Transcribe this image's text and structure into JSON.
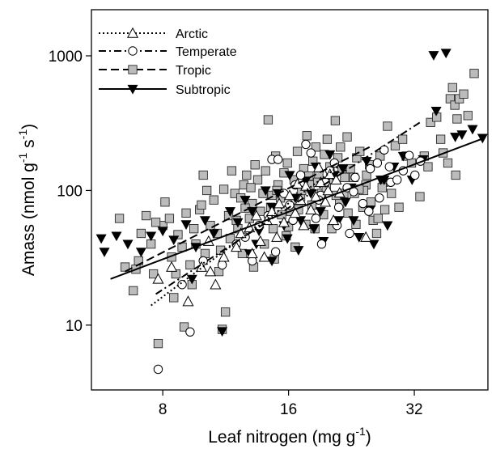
{
  "chart_data": {
    "type": "scatter",
    "x_scale": "log",
    "y_scale": "log",
    "xlim": [
      5.4,
      48
    ],
    "ylim": [
      3.3,
      2200
    ],
    "x_ticks": [
      8,
      16,
      32
    ],
    "x_tick_labels": [
      "8",
      "16",
      "32"
    ],
    "y_ticks": [
      10,
      100,
      1000
    ],
    "y_tick_labels": [
      "10",
      "100",
      "1000"
    ],
    "xlabel": "Leaf nitrogen (mg g",
    "xlabel_sup": "-1",
    "xlabel_close": ")",
    "ylabel_parts": [
      {
        "text": "Amass (nmol g",
        "sup": false
      },
      {
        "text": "-1",
        "sup": true
      },
      {
        "text": " s",
        "sup": false
      },
      {
        "text": "-1",
        "sup": true
      },
      {
        "text": ")",
        "sup": false
      }
    ],
    "grid": false,
    "legend_position": "top-left",
    "series": [
      {
        "name": "Arctic",
        "marker": "triangle-open",
        "line": "dotted",
        "fit": [
          [
            7.5,
            14
          ],
          [
            21,
            150
          ]
        ],
        "points": [
          [
            7.8,
            22
          ],
          [
            8.4,
            27
          ],
          [
            9.2,
            15
          ],
          [
            9.9,
            27
          ],
          [
            10.4,
            25
          ],
          [
            10.7,
            20
          ],
          [
            10.3,
            42
          ],
          [
            11.2,
            32
          ],
          [
            12.3,
            48
          ],
          [
            12.9,
            53
          ],
          [
            13.1,
            34
          ],
          [
            13.7,
            42
          ],
          [
            14.2,
            60
          ],
          [
            14.6,
            70
          ],
          [
            15.0,
            45
          ],
          [
            15.6,
            58
          ],
          [
            16.1,
            92
          ],
          [
            16.6,
            68
          ],
          [
            17.1,
            85
          ],
          [
            17.6,
            108
          ],
          [
            18.1,
            72
          ],
          [
            18.6,
            90
          ],
          [
            19.1,
            115
          ],
          [
            19.6,
            82
          ],
          [
            20.1,
            132
          ],
          [
            20.8,
            120
          ],
          [
            21.2,
            96
          ],
          [
            14.0,
            32
          ],
          [
            15.2,
            80
          ],
          [
            17.4,
            55
          ],
          [
            18.9,
            148
          ],
          [
            20.5,
            60
          ],
          [
            13.4,
            65
          ],
          [
            16.8,
            112
          ],
          [
            19.9,
            100
          ],
          [
            24.5,
            45
          ],
          [
            12.0,
            38
          ]
        ]
      },
      {
        "name": "Temperate",
        "marker": "circle-open",
        "line": "dash-dot",
        "fit": [
          [
            7.7,
            17
          ],
          [
            33,
            320
          ]
        ],
        "points": [
          [
            7.8,
            4.7
          ],
          [
            9.3,
            8.9
          ],
          [
            8.9,
            20
          ],
          [
            10.0,
            30
          ],
          [
            11.1,
            28
          ],
          [
            12.0,
            40
          ],
          [
            13.1,
            30
          ],
          [
            13.6,
            55
          ],
          [
            14.3,
            65
          ],
          [
            14.6,
            170
          ],
          [
            15.1,
            170
          ],
          [
            15.6,
            95
          ],
          [
            16.1,
            78
          ],
          [
            16.6,
            110
          ],
          [
            17.1,
            130
          ],
          [
            17.6,
            220
          ],
          [
            18.1,
            190
          ],
          [
            18.6,
            62
          ],
          [
            19.1,
            92
          ],
          [
            19.6,
            115
          ],
          [
            20.1,
            140
          ],
          [
            20.6,
            160
          ],
          [
            21.1,
            75
          ],
          [
            22.1,
            105
          ],
          [
            23.1,
            125
          ],
          [
            24.1,
            80
          ],
          [
            25.1,
            145
          ],
          [
            26.1,
            160
          ],
          [
            27.1,
            200
          ],
          [
            28.1,
            115
          ],
          [
            29.1,
            120
          ],
          [
            31.1,
            182
          ],
          [
            32.1,
            130
          ],
          [
            33.1,
            165
          ],
          [
            12.6,
            45
          ],
          [
            14.9,
            35
          ],
          [
            16.4,
            60
          ],
          [
            18.9,
            85
          ],
          [
            20.9,
            55
          ],
          [
            22.9,
            98
          ],
          [
            24.9,
            70
          ],
          [
            26.4,
            88
          ],
          [
            27.9,
            150
          ],
          [
            19.2,
            40
          ],
          [
            22.4,
            48
          ],
          [
            30.1,
            140
          ]
        ]
      },
      {
        "name": "Tropic",
        "marker": "square-gray",
        "line": "dashed",
        "fit": [
          [
            6.5,
            25
          ],
          [
            25,
            210
          ]
        ],
        "points": [
          [
            6.3,
            62
          ],
          [
            6.5,
            27
          ],
          [
            6.8,
            18
          ],
          [
            7.0,
            30
          ],
          [
            7.1,
            48
          ],
          [
            7.3,
            65
          ],
          [
            7.5,
            40
          ],
          [
            7.6,
            24
          ],
          [
            7.8,
            7.3
          ],
          [
            8.0,
            55
          ],
          [
            8.1,
            82
          ],
          [
            8.3,
            62
          ],
          [
            8.4,
            32
          ],
          [
            8.5,
            16
          ],
          [
            8.7,
            47
          ],
          [
            8.9,
            38
          ],
          [
            9.0,
            9.7
          ],
          [
            9.1,
            68
          ],
          [
            9.3,
            28
          ],
          [
            9.5,
            52
          ],
          [
            9.6,
            40
          ],
          [
            9.8,
            72
          ],
          [
            10.0,
            130
          ],
          [
            10.2,
            100
          ],
          [
            10.4,
            55
          ],
          [
            10.6,
            85
          ],
          [
            10.8,
            48
          ],
          [
            11.0,
            36
          ],
          [
            11.1,
            9.3
          ],
          [
            11.3,
            12.5
          ],
          [
            11.5,
            65
          ],
          [
            11.7,
            140
          ],
          [
            11.9,
            95
          ],
          [
            12.1,
            52
          ],
          [
            12.3,
            88
          ],
          [
            12.5,
            110
          ],
          [
            12.7,
            130
          ],
          [
            12.9,
            62
          ],
          [
            13.1,
            80
          ],
          [
            13.3,
            155
          ],
          [
            13.5,
            120
          ],
          [
            13.7,
            70
          ],
          [
            13.9,
            95
          ],
          [
            14.1,
            140
          ],
          [
            14.3,
            335
          ],
          [
            14.5,
            75
          ],
          [
            14.7,
            52
          ],
          [
            14.9,
            180
          ],
          [
            15.1,
            110
          ],
          [
            15.3,
            88
          ],
          [
            15.6,
            135
          ],
          [
            15.9,
            160
          ],
          [
            16.2,
            70
          ],
          [
            16.5,
            120
          ],
          [
            16.8,
            195
          ],
          [
            17.1,
            90
          ],
          [
            17.4,
            145
          ],
          [
            17.7,
            255
          ],
          [
            18.0,
            110
          ],
          [
            18.3,
            165
          ],
          [
            18.6,
            210
          ],
          [
            18.9,
            130
          ],
          [
            19.2,
            95
          ],
          [
            19.5,
            185
          ],
          [
            19.8,
            240
          ],
          [
            20.1,
            150
          ],
          [
            20.4,
            120
          ],
          [
            20.7,
            330
          ],
          [
            21.0,
            175
          ],
          [
            21.3,
            210
          ],
          [
            21.7,
            95
          ],
          [
            22.1,
            250
          ],
          [
            22.5,
            145
          ],
          [
            22.9,
            125
          ],
          [
            23.3,
            175
          ],
          [
            23.7,
            195
          ],
          [
            24.1,
            75
          ],
          [
            24.5,
            110
          ],
          [
            25.0,
            155
          ],
          [
            25.5,
            60
          ],
          [
            26.0,
            48
          ],
          [
            26.5,
            180
          ],
          [
            27.0,
            115
          ],
          [
            27.6,
            300
          ],
          [
            28.2,
            95
          ],
          [
            28.8,
            215
          ],
          [
            29.4,
            75
          ],
          [
            30.0,
            240
          ],
          [
            30.6,
            180
          ],
          [
            31.5,
            160
          ],
          [
            33.0,
            90
          ],
          [
            33.8,
            180
          ],
          [
            34.5,
            150
          ],
          [
            35.0,
            320
          ],
          [
            36.2,
            350
          ],
          [
            37.0,
            240
          ],
          [
            37.5,
            190
          ],
          [
            38.5,
            160
          ],
          [
            39.0,
            480
          ],
          [
            39.5,
            580
          ],
          [
            40.0,
            430
          ],
          [
            40.5,
            340
          ],
          [
            41.0,
            480
          ],
          [
            42.0,
            520
          ],
          [
            43.0,
            360
          ],
          [
            44.5,
            740
          ],
          [
            40.2,
            130
          ],
          [
            6.9,
            26
          ],
          [
            7.7,
            58
          ],
          [
            8.6,
            24
          ],
          [
            9.4,
            20
          ],
          [
            10.1,
            34
          ],
          [
            10.9,
            25
          ],
          [
            11.6,
            44
          ],
          [
            12.4,
            34
          ],
          [
            13.2,
            27
          ],
          [
            14.0,
            40
          ],
          [
            14.8,
            31
          ],
          [
            15.8,
            46
          ],
          [
            16.6,
            38
          ],
          [
            17.6,
            56
          ],
          [
            18.5,
            52
          ],
          [
            19.4,
            66
          ],
          [
            20.3,
            52
          ],
          [
            21.2,
            80
          ],
          [
            22.2,
            68
          ],
          [
            23.2,
            56
          ],
          [
            24.2,
            100
          ],
          [
            25.2,
            82
          ],
          [
            26.2,
            62
          ],
          [
            27.2,
            72
          ],
          [
            12.0,
            60
          ],
          [
            13.0,
            105
          ],
          [
            14.6,
            92
          ],
          [
            16.0,
            54
          ],
          [
            17.2,
            100
          ],
          [
            18.2,
            78
          ],
          [
            19.7,
            105
          ],
          [
            20.8,
            92
          ],
          [
            21.8,
            125
          ],
          [
            23.0,
            95
          ],
          [
            24.6,
            130
          ],
          [
            26.8,
            105
          ],
          [
            9.9,
            78
          ],
          [
            11.2,
            102
          ],
          [
            12.6,
            74
          ],
          [
            15.4,
            66
          ],
          [
            16.9,
            72
          ],
          [
            18.8,
            115
          ],
          [
            21.5,
            145
          ],
          [
            23.6,
            102
          ],
          [
            15.0,
            100
          ],
          [
            17.9,
            128
          ]
        ]
      },
      {
        "name": "Subtropic",
        "marker": "triangle-down-black",
        "line": "solid",
        "fit": [
          [
            6.0,
            22
          ],
          [
            47,
            245
          ]
        ],
        "points": [
          [
            5.7,
            44
          ],
          [
            5.8,
            35
          ],
          [
            6.2,
            46
          ],
          [
            6.6,
            40
          ],
          [
            7.1,
            35
          ],
          [
            7.5,
            46
          ],
          [
            8.0,
            50
          ],
          [
            8.5,
            43
          ],
          [
            9.1,
            56
          ],
          [
            9.6,
            38
          ],
          [
            10.1,
            60
          ],
          [
            10.6,
            48
          ],
          [
            11.1,
            9.0
          ],
          [
            11.6,
            70
          ],
          [
            12.1,
            58
          ],
          [
            12.6,
            85
          ],
          [
            13.1,
            70
          ],
          [
            13.6,
            50
          ],
          [
            14.1,
            100
          ],
          [
            14.6,
            75
          ],
          [
            15.1,
            95
          ],
          [
            15.6,
            55
          ],
          [
            16.1,
            130
          ],
          [
            16.6,
            88
          ],
          [
            17.1,
            60
          ],
          [
            17.6,
            118
          ],
          [
            18.1,
            95
          ],
          [
            18.6,
            150
          ],
          [
            19.1,
            70
          ],
          [
            19.6,
            115
          ],
          [
            20.1,
            185
          ],
          [
            20.6,
            130
          ],
          [
            21.1,
            60
          ],
          [
            21.6,
            145
          ],
          [
            22.6,
            105
          ],
          [
            23.6,
            45
          ],
          [
            24.6,
            165
          ],
          [
            25.6,
            40
          ],
          [
            26.6,
            120
          ],
          [
            27.6,
            55
          ],
          [
            28.6,
            150
          ],
          [
            30.1,
            180
          ],
          [
            31.6,
            120
          ],
          [
            33.6,
            170
          ],
          [
            35.6,
            1010
          ],
          [
            36.1,
            390
          ],
          [
            38.1,
            1050
          ],
          [
            40.1,
            250
          ],
          [
            41.6,
            260
          ],
          [
            44.1,
            285
          ],
          [
            46.6,
            245
          ],
          [
            12.9,
            34
          ],
          [
            14.6,
            30
          ],
          [
            16.9,
            36
          ],
          [
            19.4,
            42
          ],
          [
            22.9,
            60
          ],
          [
            25.1,
            72
          ],
          [
            9.4,
            22
          ],
          [
            13.4,
            40
          ],
          [
            15.9,
            44
          ],
          [
            18.4,
            52
          ],
          [
            21.9,
            82
          ],
          [
            27.1,
            120
          ]
        ]
      }
    ]
  }
}
